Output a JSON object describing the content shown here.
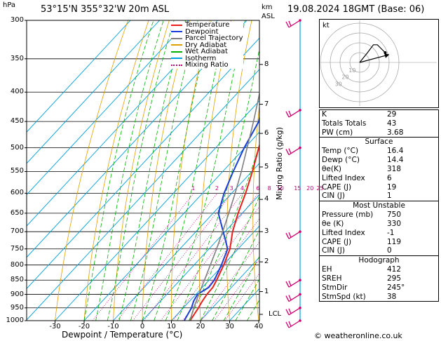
{
  "header": {
    "hpa": "hPa",
    "location": "53°15'N 355°32'W 20m ASL",
    "km": "km",
    "asl": "ASL",
    "date": "19.08.2024 18GMT (Base: 06)"
  },
  "legend": [
    {
      "label": "Temperature",
      "color": "#e8201c",
      "style": "solid"
    },
    {
      "label": "Dewpoint",
      "color": "#1a3fd6",
      "style": "solid"
    },
    {
      "label": "Parcel Trajectory",
      "color": "#7f7f7f",
      "style": "solid"
    },
    {
      "label": "Dry Adiabat",
      "color": "#e0a000",
      "style": "solid"
    },
    {
      "label": "Wet Adiabat",
      "color": "#00b000",
      "style": "solid"
    },
    {
      "label": "Isotherm",
      "color": "#00a0e0",
      "style": "solid"
    },
    {
      "label": "Mixing Ratio",
      "color": "#c0007a",
      "style": "dotted"
    }
  ],
  "chart_data": {
    "type": "line",
    "title": "",
    "xlabel": "Dewpoint / Temperature (°C)",
    "ylabel": "hPa",
    "xlim": [
      -35,
      40
    ],
    "pressure_levels": [
      300,
      350,
      400,
      450,
      500,
      550,
      600,
      650,
      700,
      750,
      800,
      850,
      900,
      950,
      1000
    ],
    "x_ticks": [
      -30,
      -20,
      -10,
      0,
      10,
      20,
      30,
      40
    ],
    "km_ticks": [
      {
        "label": "8",
        "p": 358
      },
      {
        "label": "7",
        "p": 420
      },
      {
        "label": "6",
        "p": 472
      },
      {
        "label": "5",
        "p": 540
      },
      {
        "label": "4",
        "p": 615
      },
      {
        "label": "3",
        "p": 700
      },
      {
        "label": "2",
        "p": 790
      },
      {
        "label": "1",
        "p": 890
      },
      {
        "label": "LCL",
        "p": 975
      }
    ],
    "mixing_ratio_labels": [
      "1",
      "2",
      "3",
      "4",
      "6",
      "8",
      "10",
      "15",
      "20",
      "25"
    ],
    "mixing_ratio_label_text": "Mixing Ratio (g/kg)",
    "series": [
      {
        "name": "Temperature",
        "color": "#e8201c",
        "points": [
          [
            1000,
            16.4
          ],
          [
            950,
            15.2
          ],
          [
            925,
            14.4
          ],
          [
            900,
            13.8
          ],
          [
            875,
            13.6
          ],
          [
            850,
            12.6
          ],
          [
            800,
            10.2
          ],
          [
            750,
            7.2
          ],
          [
            700,
            2.6
          ],
          [
            650,
            -1.4
          ],
          [
            600,
            -5.2
          ],
          [
            550,
            -9.8
          ],
          [
            500,
            -15.2
          ],
          [
            450,
            -20.8
          ],
          [
            400,
            -27.6
          ],
          [
            350,
            -35.2
          ],
          [
            300,
            -44.4
          ]
        ]
      },
      {
        "name": "Dewpoint",
        "color": "#1a3fd6",
        "points": [
          [
            1000,
            14.4
          ],
          [
            950,
            12.8
          ],
          [
            925,
            11.4
          ],
          [
            900,
            10.6
          ],
          [
            875,
            12.2
          ],
          [
            850,
            11.8
          ],
          [
            800,
            9.4
          ],
          [
            750,
            6.4
          ],
          [
            700,
            -0.6
          ],
          [
            650,
            -8.2
          ],
          [
            600,
            -12.6
          ],
          [
            550,
            -16.4
          ],
          [
            500,
            -20.2
          ],
          [
            450,
            -23.6
          ],
          [
            400,
            -30.8
          ],
          [
            350,
            -39.6
          ],
          [
            300,
            -49.0
          ]
        ]
      },
      {
        "name": "Parcel Trajectory",
        "color": "#7f7f7f",
        "points": [
          [
            1000,
            16.4
          ],
          [
            975,
            15.0
          ],
          [
            950,
            13.6
          ],
          [
            900,
            11.0
          ],
          [
            850,
            8.4
          ],
          [
            800,
            5.6
          ],
          [
            750,
            2.6
          ],
          [
            700,
            -0.8
          ],
          [
            650,
            -4.6
          ],
          [
            600,
            -8.8
          ],
          [
            550,
            -13.6
          ],
          [
            500,
            -19.2
          ],
          [
            450,
            -25.4
          ],
          [
            400,
            -32.6
          ],
          [
            350,
            -40.8
          ],
          [
            300,
            -50.4
          ]
        ]
      }
    ]
  },
  "indices": {
    "rows": [
      {
        "label": "K",
        "value": "29"
      },
      {
        "label": "Totals Totals",
        "value": "43"
      },
      {
        "label": "PW (cm)",
        "value": "3.68"
      }
    ],
    "surface": {
      "title": "Surface",
      "rows": [
        {
          "label": "Temp (°C)",
          "value": "16.4"
        },
        {
          "label": "Dewp (°C)",
          "value": "14.4"
        },
        {
          "label": "θe(K)",
          "value": "318"
        },
        {
          "label": "Lifted Index",
          "value": "6"
        },
        {
          "label": "CAPE (J)",
          "value": "19"
        },
        {
          "label": "CIN (J)",
          "value": "1"
        }
      ]
    },
    "most_unstable": {
      "title": "Most Unstable",
      "rows": [
        {
          "label": "Pressure (mb)",
          "value": "750"
        },
        {
          "label": "θe (K)",
          "value": "330"
        },
        {
          "label": "Lifted Index",
          "value": "-1"
        },
        {
          "label": "CAPE (J)",
          "value": "119"
        },
        {
          "label": "CIN (J)",
          "value": "0"
        }
      ]
    },
    "hodograph": {
      "title": "Hodograph",
      "rows": [
        {
          "label": "EH",
          "value": "412"
        },
        {
          "label": "SREH",
          "value": "295"
        },
        {
          "label": "StmDir",
          "value": "245°"
        },
        {
          "label": "StmSpd (kt)",
          "value": "38"
        }
      ]
    }
  },
  "hodograph_plot": {
    "unit_label": "kt",
    "ring_labels": [
      "10",
      "20",
      "30"
    ],
    "trace": [
      [
        0,
        0
      ],
      [
        8,
        10
      ],
      [
        14,
        18
      ],
      [
        18,
        18
      ],
      [
        26,
        10
      ]
    ],
    "storm_motion": [
      30,
      8
    ]
  },
  "copyright": "© weatheronline.co.uk"
}
